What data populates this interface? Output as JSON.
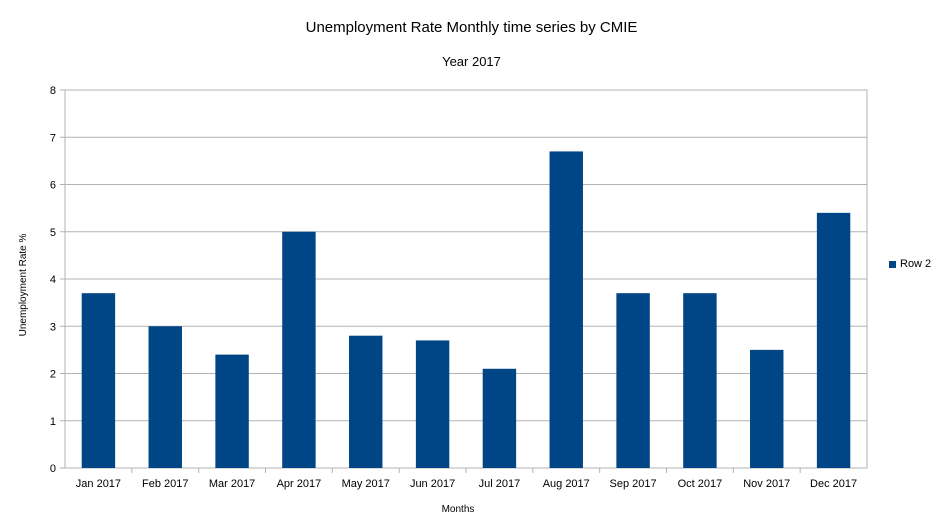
{
  "chart_data": {
    "type": "bar",
    "title": "Unemployment Rate Monthly time series by CMIE",
    "subtitle": "Year 2017",
    "xlabel": "Months",
    "ylabel": "Unemployment Rate %",
    "categories": [
      "Jan 2017",
      "Feb 2017",
      "Mar 2017",
      "Apr 2017",
      "May 2017",
      "Jun 2017",
      "Jul 2017",
      "Aug 2017",
      "Sep 2017",
      "Oct 2017",
      "Nov 2017",
      "Dec 2017"
    ],
    "series": [
      {
        "name": "Row 2",
        "values": [
          3.7,
          3.0,
          2.4,
          5.0,
          2.8,
          2.7,
          2.1,
          6.7,
          3.7,
          3.7,
          2.5,
          5.4
        ]
      }
    ],
    "ylim": [
      0,
      8
    ],
    "yticks": [
      0,
      1,
      2,
      3,
      4,
      5,
      6,
      7,
      8
    ],
    "grid": true,
    "legend_position": "right",
    "colors": {
      "bar": "#004586",
      "grid": "#b3b3b3"
    }
  }
}
